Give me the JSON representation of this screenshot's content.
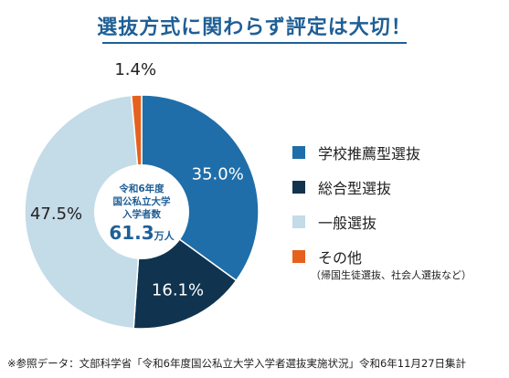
{
  "title": "選抜方式に関わらず評定は大切！",
  "center": {
    "line1": "令和6年度",
    "line2": "国公私立大学",
    "line3": "入学者数",
    "value": "61.3",
    "unit": "万人"
  },
  "chart_data": {
    "type": "pie",
    "title": "選抜方式に関わらず評定は大切！",
    "slices": [
      {
        "name": "学校推薦型選抜",
        "value": 35.0,
        "label": "35.0%",
        "color": "#1f6ea9"
      },
      {
        "name": "総合型選抜",
        "value": 16.1,
        "label": "16.1%",
        "color": "#10344f"
      },
      {
        "name": "一般選抜",
        "value": 47.5,
        "label": "47.5%",
        "color": "#c4dbe8"
      },
      {
        "name": "その他",
        "value": 1.4,
        "label": "1.4%",
        "color": "#e5621e"
      }
    ]
  },
  "legend": {
    "items": [
      "学校推薦型選抜",
      "総合型選抜",
      "一般選抜",
      "その他"
    ],
    "note": "（帰国生徒選抜、社会人選抜など）"
  },
  "footer": "※参照データ：文部科学省「令和6年度国公私立大学入学者選抜実施状況」令和6年11月27日集計"
}
